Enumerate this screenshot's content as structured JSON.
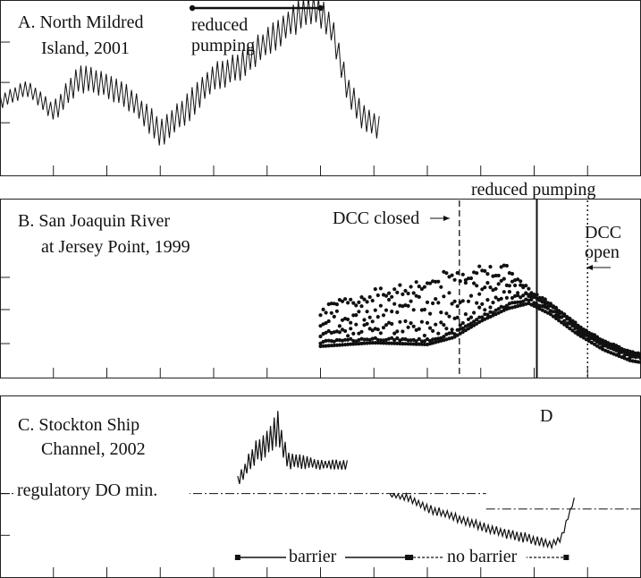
{
  "chart_data": [
    {
      "type": "line",
      "title": "A. North Mildred",
      "subtitle": "Island, 2001",
      "annotation": "reduced",
      "annotation2": "pumping",
      "xlim": [
        0,
        12
      ],
      "ylim": [
        0,
        10
      ],
      "x_tick_positions": [
        1,
        2,
        3,
        4,
        5,
        6,
        7,
        8,
        9,
        10,
        11
      ],
      "y_tick_positions": [
        3,
        5.3,
        7.6
      ],
      "reduced_pumping_interval": [
        3.6,
        6.0
      ],
      "series": [
        {
          "x": [
            0,
            0.5,
            1.0,
            1.5,
            2.0,
            2.5,
            3.0,
            3.5,
            4.0,
            4.5,
            5.0,
            5.5,
            5.9,
            6.2,
            6.5,
            6.8,
            7.1
          ],
          "y": [
            4.2,
            5.0,
            3.6,
            5.6,
            5.2,
            4.2,
            2.4,
            3.8,
            5.6,
            6.3,
            7.6,
            8.9,
            9.6,
            8.4,
            5.0,
            3.3,
            2.8
          ],
          "amplitude": [
            0.5,
            0.5,
            0.6,
            0.9,
            0.8,
            0.8,
            0.9,
            0.9,
            0.9,
            0.9,
            0.9,
            1.0,
            1.0,
            1.0,
            0.9,
            0.8,
            0.8
          ]
        }
      ]
    },
    {
      "type": "scatter",
      "title": "B. San Joaquin River",
      "subtitle": "at Jersey Point, 1999",
      "annotations": [
        "reduced pumping",
        "DCC closed",
        "DCC",
        "open"
      ],
      "xlim": [
        0,
        12
      ],
      "ylim": [
        0,
        10
      ],
      "x_tick_positions": [
        1,
        2,
        3,
        4,
        5,
        6,
        7,
        8,
        9,
        10,
        11
      ],
      "y_tick_positions": [
        1.9,
        3.8,
        5.6
      ],
      "x_start": 6.0,
      "x_end": 12.0,
      "markers": {
        "dcc_closed": 8.6,
        "reduced_pumping": 10.05,
        "dcc_open": 11.0
      },
      "baseline": {
        "x": [
          6.0,
          7.0,
          8.0,
          8.5,
          9.0,
          9.5,
          9.9,
          10.3,
          10.8,
          11.3,
          11.8,
          12.0
        ],
        "y": [
          1.9,
          2.1,
          2.0,
          2.4,
          3.3,
          4.0,
          4.3,
          3.7,
          2.6,
          1.7,
          1.1,
          1.0
        ]
      },
      "upper_spread": {
        "x": [
          6.0,
          7.0,
          8.0,
          8.5,
          9.0,
          9.5,
          9.9,
          10.3,
          10.8,
          11.3,
          11.8,
          12.0
        ],
        "y": [
          4.0,
          5.0,
          5.7,
          6.1,
          6.4,
          6.3,
          5.0,
          4.2,
          3.0,
          2.0,
          1.4,
          1.3
        ]
      }
    },
    {
      "type": "line",
      "title": "C. Stockton Ship",
      "subtitle": "Channel, 2002",
      "corner_label": "D",
      "annotations": [
        "regulatory DO min.",
        "barrier",
        "no barrier"
      ],
      "xlim": [
        0,
        12
      ],
      "ylim": [
        0,
        10
      ],
      "x_tick_positions": [
        1,
        2,
        3,
        4,
        5,
        6,
        7,
        8,
        9,
        10,
        11
      ],
      "y_tick_positions": [
        2.3,
        4.6
      ],
      "regulatory_do_min": 4.6,
      "barrier_interval": [
        4.45,
        7.65
      ],
      "no_barrier_interval": [
        7.65,
        10.6
      ],
      "series": [
        {
          "name": "",
          "x": [
            4.45,
            4.8,
            5.0,
            5.2,
            5.4,
            6.0,
            6.5
          ],
          "y": [
            5.3,
            6.9,
            7.5,
            8.1,
            6.4,
            6.2,
            6.2
          ],
          "amplitude": [
            0.4,
            0.7,
            0.9,
            1.1,
            0.5,
            0.3,
            0.3
          ]
        },
        {
          "name": "",
          "x": [
            7.3,
            7.6,
            8.0,
            8.6,
            9.2,
            9.8,
            10.3,
            10.5,
            10.75
          ],
          "y": [
            4.5,
            4.4,
            3.8,
            3.2,
            2.6,
            2.2,
            1.8,
            2.1,
            4.3
          ],
          "amplitude": [
            0.1,
            0.2,
            0.25,
            0.25,
            0.3,
            0.3,
            0.25,
            0.2,
            0.1
          ]
        }
      ]
    }
  ]
}
